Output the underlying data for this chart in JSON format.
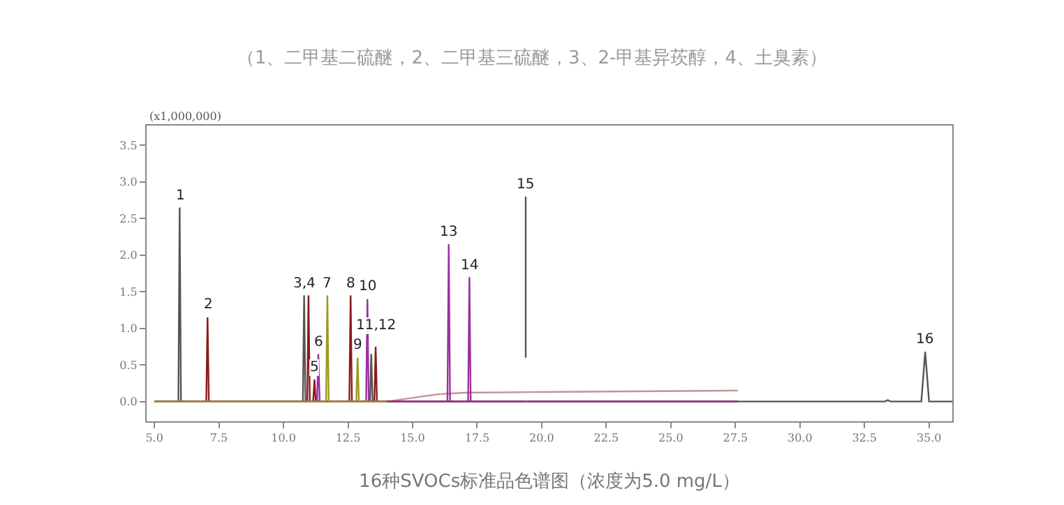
{
  "chart_data": {
    "type": "line",
    "title": "（1、二甲基二硫醚，2、二甲基三硫醚，3、2-甲基异莰醇，4、土臭素）",
    "xlabel": "16种SVOCs标准品色谱图（浓度为5.0 mg/L）",
    "xlim": [
      4.7,
      35.9
    ],
    "ylim": [
      -0.27,
      3.77
    ],
    "xticks": [
      {
        "value": 5,
        "label": "5.0"
      },
      7.5,
      {
        "value": 10,
        "label": "10.0"
      },
      12.5,
      {
        "value": 15,
        "label": "15.0"
      },
      17.5,
      {
        "value": 20,
        "label": "20.0"
      },
      22.5,
      {
        "value": 25,
        "label": "25.0"
      },
      27.5,
      {
        "value": 30,
        "label": "30.0"
      },
      32.5,
      {
        "value": 35,
        "label": "35.0"
      }
    ],
    "yticks": [
      {
        "value": 0,
        "label": "0.0"
      },
      0.5,
      {
        "value": 1,
        "label": "1.0"
      },
      1.5,
      {
        "value": 2,
        "label": "2.0"
      },
      2.5,
      {
        "value": 3,
        "label": "3.0"
      },
      3.5
    ],
    "marker": "none",
    "line_style": "solid",
    "series": [
      {
        "color": "#c99090",
        "x": [
          5,
          14,
          15,
          16,
          17,
          20,
          27.6
        ],
        "values": [
          0,
          0,
          0.05,
          0.1,
          0.12,
          0.13,
          0.15
        ]
      },
      {
        "color": "#555555",
        "x": [
          5,
          5.93,
          5.98,
          6.03,
          10.75,
          10.8,
          10.85,
          13.35,
          13.4,
          13.45,
          19.3,
          19.35,
          19.38,
          19.38,
          19.4,
          19.45,
          33.3,
          33.4,
          33.5,
          34.7,
          34.85,
          35.0,
          35.9
        ],
        "values": [
          0,
          0,
          2.65,
          0,
          0,
          1.45,
          0,
          0,
          0.65,
          0,
          0,
          null,
          0.6,
          2.8,
          null,
          0,
          0,
          0.02,
          0,
          0,
          0.68,
          0,
          0
        ]
      },
      {
        "color": "#8b1a1a",
        "x": [
          5,
          7.01,
          7.06,
          7.11,
          10.92,
          10.97,
          11.02,
          11.15,
          11.2,
          11.25,
          12.55,
          12.6,
          12.65,
          13.52,
          13.57,
          13.62,
          27.6
        ],
        "values": [
          0,
          0,
          1.15,
          0,
          0,
          1.45,
          0,
          0,
          0.3,
          0,
          0,
          1.45,
          0,
          0,
          0.75,
          0,
          0
        ]
      },
      {
        "color": "#9b30a0",
        "x": [
          5,
          11.3,
          11.35,
          11.4,
          13.2,
          13.25,
          13.3,
          16.35,
          16.4,
          16.45,
          17.15,
          17.2,
          17.25,
          27.6
        ],
        "values": [
          0,
          0,
          0.65,
          0,
          0,
          1.4,
          0,
          0,
          2.15,
          0,
          0,
          1.7,
          0,
          0
        ]
      },
      {
        "color": "#9a9a20",
        "x": [
          5,
          11.65,
          11.7,
          11.75,
          12.82,
          12.87,
          12.92,
          14
        ],
        "values": [
          0,
          0,
          1.45,
          0,
          0,
          0.6,
          0,
          0
        ]
      }
    ],
    "annotations": [
      "(x1,000,000)",
      {
        "text": "1",
        "x": 5.98,
        "y": 2.65
      },
      {
        "text": "2",
        "x": 7.06,
        "y": 1.15
      },
      {
        "text": "3,4",
        "x": 10.8,
        "y": 1.45
      },
      {
        "text": "5",
        "x": 11.2,
        "y": 0.3
      },
      {
        "text": "6",
        "x": 11.35,
        "y": 0.65
      },
      {
        "text": "7",
        "x": 11.7,
        "y": 1.45
      },
      {
        "text": "8",
        "x": 12.6,
        "y": 1.45
      },
      {
        "text": "9",
        "x": 12.87,
        "y": 0.6
      },
      {
        "text": "10",
        "x": 13.25,
        "y": 1.4
      },
      {
        "text": "11,12",
        "x": 13.57,
        "y": 0.75
      },
      {
        "text": "13",
        "x": 16.4,
        "y": 2.15
      },
      {
        "text": "14",
        "x": 17.2,
        "y": 1.7
      },
      {
        "text": "15",
        "x": 19.38,
        "y": 2.8
      },
      {
        "text": "16",
        "x": 34.85,
        "y": 0.68
      }
    ]
  }
}
